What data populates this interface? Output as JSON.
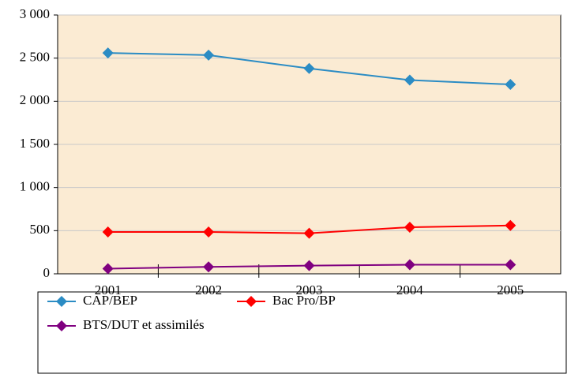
{
  "chart_data": {
    "type": "line",
    "categories": [
      "2001",
      "2002",
      "2003",
      "2004",
      "2005"
    ],
    "series": [
      {
        "name": "CAP/BEP",
        "color": "#2b8cc4",
        "values": [
          2560,
          2535,
          2380,
          2245,
          2195
        ]
      },
      {
        "name": "Bac Pro/BP",
        "color": "#ff0000",
        "values": [
          485,
          485,
          470,
          540,
          560
        ]
      },
      {
        "name": "BTS/DUT et assimilés",
        "color": "#800080",
        "values": [
          60,
          80,
          95,
          105,
          105
        ]
      }
    ],
    "ylim": [
      0,
      3000
    ],
    "yticks": [
      0,
      500,
      {
        "value": 1000,
        "label": "1 000"
      },
      {
        "value": 1500,
        "label": "1 500"
      },
      {
        "value": 2000,
        "label": "2 000"
      },
      {
        "value": 2500,
        "label": "2 500"
      },
      {
        "value": 3000,
        "label": "3 000"
      }
    ],
    "grid": true,
    "legend": "bottom"
  }
}
